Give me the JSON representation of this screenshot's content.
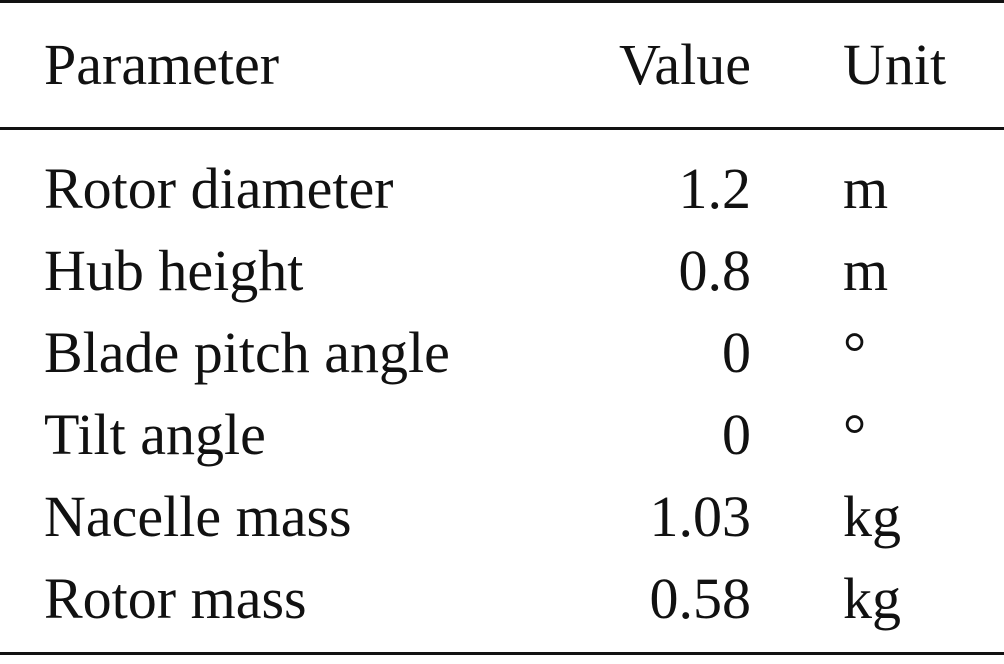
{
  "table": {
    "headers": {
      "parameter": "Parameter",
      "value": "Value",
      "unit": "Unit"
    },
    "rows": [
      {
        "parameter": "Rotor diameter",
        "value": "1.2",
        "unit": "m"
      },
      {
        "parameter": "Hub height",
        "value": "0.8",
        "unit": "m"
      },
      {
        "parameter": "Blade pitch angle",
        "value": "0",
        "unit": "°"
      },
      {
        "parameter": "Tilt angle",
        "value": "0",
        "unit": "°"
      },
      {
        "parameter": "Nacelle mass",
        "value": "1.03",
        "unit": "kg"
      },
      {
        "parameter": "Rotor mass",
        "value": "0.58",
        "unit": "kg"
      }
    ]
  }
}
